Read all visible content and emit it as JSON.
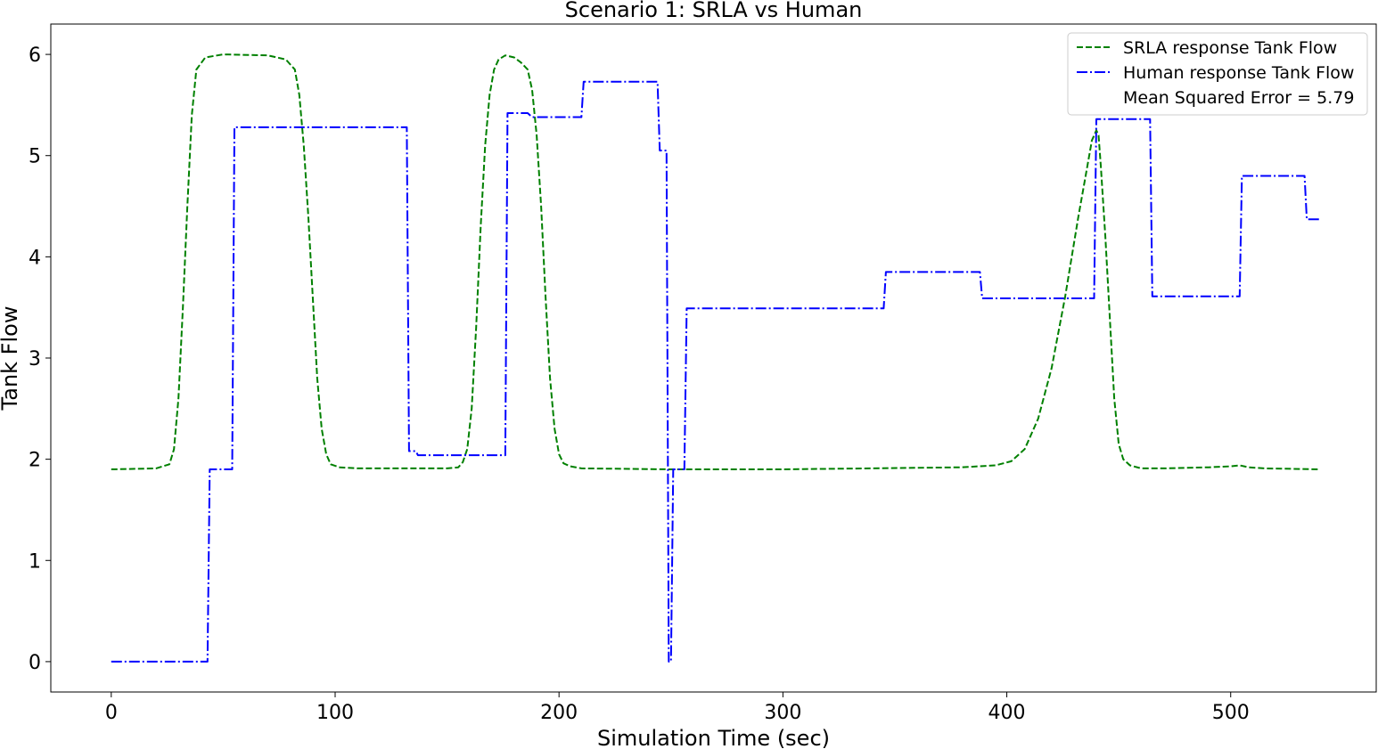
{
  "chart_data": {
    "type": "line",
    "title": "Scenario 1: SRLA vs Human",
    "xlabel": "Simulation Time (sec)",
    "ylabel": "Tank Flow",
    "xlim": [
      -27,
      565
    ],
    "ylim": [
      -0.3,
      6.3
    ],
    "xticks": [
      0,
      100,
      200,
      300,
      400,
      500
    ],
    "yticks": [
      0,
      1,
      2,
      3,
      4,
      5,
      6
    ],
    "grid": false,
    "legend_position": "top-right",
    "legend_extra": "Mean Squared Error = 5.79",
    "series": [
      {
        "name": "SRLA response Tank Flow",
        "color": "#008000",
        "style": "dashed",
        "points": [
          [
            0,
            1.9
          ],
          [
            20,
            1.91
          ],
          [
            26,
            1.95
          ],
          [
            28,
            2.1
          ],
          [
            30,
            2.6
          ],
          [
            32,
            3.5
          ],
          [
            34,
            4.5
          ],
          [
            36,
            5.4
          ],
          [
            38,
            5.85
          ],
          [
            42,
            5.97
          ],
          [
            50,
            6.0
          ],
          [
            70,
            5.99
          ],
          [
            78,
            5.95
          ],
          [
            82,
            5.85
          ],
          [
            84,
            5.6
          ],
          [
            86,
            5.1
          ],
          [
            88,
            4.4
          ],
          [
            90,
            3.6
          ],
          [
            92,
            2.8
          ],
          [
            94,
            2.3
          ],
          [
            96,
            2.05
          ],
          [
            98,
            1.95
          ],
          [
            102,
            1.92
          ],
          [
            110,
            1.91
          ],
          [
            150,
            1.91
          ],
          [
            155,
            1.92
          ],
          [
            157,
            1.97
          ],
          [
            159,
            2.1
          ],
          [
            161,
            2.5
          ],
          [
            163,
            3.3
          ],
          [
            165,
            4.3
          ],
          [
            167,
            5.1
          ],
          [
            169,
            5.6
          ],
          [
            171,
            5.85
          ],
          [
            173,
            5.95
          ],
          [
            176,
            5.99
          ],
          [
            180,
            5.97
          ],
          [
            183,
            5.92
          ],
          [
            186,
            5.85
          ],
          [
            188,
            5.65
          ],
          [
            190,
            5.2
          ],
          [
            192,
            4.5
          ],
          [
            194,
            3.6
          ],
          [
            196,
            2.8
          ],
          [
            198,
            2.3
          ],
          [
            200,
            2.05
          ],
          [
            202,
            1.96
          ],
          [
            205,
            1.93
          ],
          [
            210,
            1.91
          ],
          [
            250,
            1.9
          ],
          [
            300,
            1.9
          ],
          [
            380,
            1.92
          ],
          [
            395,
            1.94
          ],
          [
            402,
            1.98
          ],
          [
            408,
            2.1
          ],
          [
            414,
            2.4
          ],
          [
            420,
            2.9
          ],
          [
            426,
            3.6
          ],
          [
            432,
            4.4
          ],
          [
            436,
            4.9
          ],
          [
            438,
            5.15
          ],
          [
            440,
            5.25
          ],
          [
            441,
            5.2
          ],
          [
            442,
            4.9
          ],
          [
            444,
            4.2
          ],
          [
            446,
            3.4
          ],
          [
            448,
            2.6
          ],
          [
            450,
            2.15
          ],
          [
            452,
            2.0
          ],
          [
            455,
            1.94
          ],
          [
            460,
            1.91
          ],
          [
            470,
            1.91
          ],
          [
            490,
            1.92
          ],
          [
            500,
            1.93
          ],
          [
            504,
            1.94
          ],
          [
            508,
            1.92
          ],
          [
            515,
            1.91
          ],
          [
            540,
            1.9
          ]
        ]
      },
      {
        "name": "Human response Tank Flow",
        "color": "#0000ff",
        "style": "dashdot",
        "points": [
          [
            0,
            0
          ],
          [
            43,
            0
          ],
          [
            44,
            1.9
          ],
          [
            54,
            1.9
          ],
          [
            55,
            5.28
          ],
          [
            132,
            5.28
          ],
          [
            133,
            2.08
          ],
          [
            136,
            2.08
          ],
          [
            137,
            2.04
          ],
          [
            176,
            2.04
          ],
          [
            177,
            5.42
          ],
          [
            186,
            5.42
          ],
          [
            188,
            5.38
          ],
          [
            210,
            5.38
          ],
          [
            211,
            5.73
          ],
          [
            244,
            5.73
          ],
          [
            245,
            5.05
          ],
          [
            248,
            5.05
          ],
          [
            249,
            0
          ],
          [
            250,
            0
          ],
          [
            251,
            1.9
          ],
          [
            256,
            1.9
          ],
          [
            257,
            3.49
          ],
          [
            345,
            3.49
          ],
          [
            346,
            3.85
          ],
          [
            388,
            3.85
          ],
          [
            389,
            3.59
          ],
          [
            439,
            3.59
          ],
          [
            440,
            5.36
          ],
          [
            464,
            5.36
          ],
          [
            465,
            3.61
          ],
          [
            504,
            3.61
          ],
          [
            505,
            4.8
          ],
          [
            533,
            4.8
          ],
          [
            534,
            4.37
          ],
          [
            540,
            4.37
          ]
        ]
      }
    ]
  }
}
